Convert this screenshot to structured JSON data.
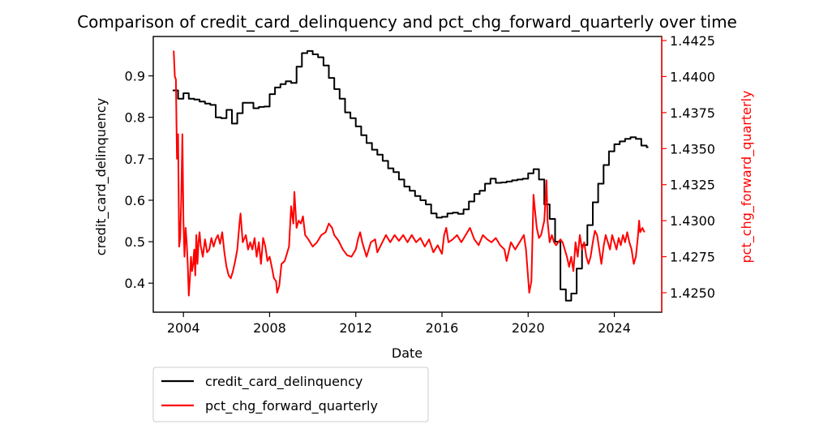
{
  "chart_data": {
    "type": "line",
    "title": "Comparison of credit_card_delinquency and pct_chg_forward_quarterly over time",
    "xlabel": "Date",
    "ylabel_left": "credit_card_delinquency",
    "ylabel_right": "pct_chg_forward_quarterly",
    "xlim": [
      2002.6,
      2026.2
    ],
    "ylim_left": [
      0.33,
      0.995
    ],
    "ylim_right": [
      1.42365,
      1.44278
    ],
    "x_ticks": [
      2004,
      2008,
      2012,
      2016,
      2020,
      2024
    ],
    "x_tick_labels": [
      "2004",
      "2008",
      "2012",
      "2016",
      "2020",
      "2024"
    ],
    "y_left_ticks": [
      0.4,
      0.5,
      0.6,
      0.7,
      0.8,
      0.9
    ],
    "y_left_tick_labels": [
      "0.4",
      "0.5",
      "0.6",
      "0.7",
      "0.8",
      "0.9"
    ],
    "y_right_ticks": [
      1.425,
      1.4275,
      1.43,
      1.4325,
      1.435,
      1.4375,
      1.44,
      1.4425
    ],
    "y_right_tick_labels": [
      "1.4250",
      "1.4275",
      "1.4300",
      "1.4325",
      "1.4350",
      "1.4375",
      "1.4400",
      "1.4425"
    ],
    "grid": false,
    "legend_position": "below-left",
    "series": [
      {
        "name": "credit_card_delinquency",
        "axis": "left",
        "color": "#000000",
        "step": true,
        "points": [
          [
            2003.5,
            0.865
          ],
          [
            2003.75,
            0.845
          ],
          [
            2004.0,
            0.858
          ],
          [
            2004.25,
            0.845
          ],
          [
            2004.5,
            0.843
          ],
          [
            2004.75,
            0.838
          ],
          [
            2005.0,
            0.833
          ],
          [
            2005.25,
            0.83
          ],
          [
            2005.5,
            0.8
          ],
          [
            2005.75,
            0.798
          ],
          [
            2006.0,
            0.818
          ],
          [
            2006.25,
            0.785
          ],
          [
            2006.5,
            0.81
          ],
          [
            2006.75,
            0.835
          ],
          [
            2007.0,
            0.835
          ],
          [
            2007.25,
            0.822
          ],
          [
            2007.5,
            0.825
          ],
          [
            2007.75,
            0.826
          ],
          [
            2008.0,
            0.856
          ],
          [
            2008.25,
            0.872
          ],
          [
            2008.5,
            0.88
          ],
          [
            2008.75,
            0.887
          ],
          [
            2009.0,
            0.883
          ],
          [
            2009.25,
            0.922
          ],
          [
            2009.5,
            0.955
          ],
          [
            2009.75,
            0.96
          ],
          [
            2010.0,
            0.952
          ],
          [
            2010.25,
            0.945
          ],
          [
            2010.5,
            0.925
          ],
          [
            2010.75,
            0.895
          ],
          [
            2011.0,
            0.868
          ],
          [
            2011.25,
            0.845
          ],
          [
            2011.5,
            0.812
          ],
          [
            2011.75,
            0.798
          ],
          [
            2012.0,
            0.778
          ],
          [
            2012.25,
            0.757
          ],
          [
            2012.5,
            0.738
          ],
          [
            2012.75,
            0.722
          ],
          [
            2013.0,
            0.71
          ],
          [
            2013.25,
            0.695
          ],
          [
            2013.5,
            0.677
          ],
          [
            2013.75,
            0.668
          ],
          [
            2014.0,
            0.65
          ],
          [
            2014.25,
            0.633
          ],
          [
            2014.5,
            0.623
          ],
          [
            2014.75,
            0.61
          ],
          [
            2015.0,
            0.6
          ],
          [
            2015.25,
            0.59
          ],
          [
            2015.5,
            0.568
          ],
          [
            2015.75,
            0.558
          ],
          [
            2016.0,
            0.56
          ],
          [
            2016.25,
            0.568
          ],
          [
            2016.5,
            0.57
          ],
          [
            2016.75,
            0.567
          ],
          [
            2017.0,
            0.578
          ],
          [
            2017.25,
            0.597
          ],
          [
            2017.5,
            0.615
          ],
          [
            2017.75,
            0.623
          ],
          [
            2018.0,
            0.64
          ],
          [
            2018.25,
            0.652
          ],
          [
            2018.5,
            0.642
          ],
          [
            2018.75,
            0.643
          ],
          [
            2019.0,
            0.645
          ],
          [
            2019.25,
            0.648
          ],
          [
            2019.5,
            0.65
          ],
          [
            2019.75,
            0.652
          ],
          [
            2020.0,
            0.665
          ],
          [
            2020.25,
            0.675
          ],
          [
            2020.5,
            0.65
          ],
          [
            2020.75,
            0.59
          ],
          [
            2021.0,
            0.555
          ],
          [
            2021.25,
            0.5
          ],
          [
            2021.5,
            0.385
          ],
          [
            2021.75,
            0.358
          ],
          [
            2022.0,
            0.375
          ],
          [
            2022.25,
            0.435
          ],
          [
            2022.5,
            0.492
          ],
          [
            2022.75,
            0.54
          ],
          [
            2023.0,
            0.595
          ],
          [
            2023.25,
            0.64
          ],
          [
            2023.5,
            0.685
          ],
          [
            2023.75,
            0.718
          ],
          [
            2024.0,
            0.735
          ],
          [
            2024.25,
            0.742
          ],
          [
            2024.5,
            0.748
          ],
          [
            2024.75,
            0.752
          ],
          [
            2025.0,
            0.748
          ],
          [
            2025.25,
            0.732
          ],
          [
            2025.5,
            0.728
          ]
        ]
      },
      {
        "name": "pct_chg_forward_quarterly",
        "axis": "right",
        "color": "#ff0000",
        "step": false,
        "points": [
          [
            2003.55,
            1.4418
          ],
          [
            2003.6,
            1.44
          ],
          [
            2003.65,
            1.4398
          ],
          [
            2003.7,
            1.4343
          ],
          [
            2003.75,
            1.436
          ],
          [
            2003.8,
            1.4282
          ],
          [
            2003.85,
            1.4288
          ],
          [
            2003.9,
            1.4315
          ],
          [
            2003.95,
            1.436
          ],
          [
            2004.0,
            1.43
          ],
          [
            2004.05,
            1.4275
          ],
          [
            2004.1,
            1.4295
          ],
          [
            2004.15,
            1.4285
          ],
          [
            2004.2,
            1.427
          ],
          [
            2004.25,
            1.4248
          ],
          [
            2004.3,
            1.426
          ],
          [
            2004.35,
            1.4275
          ],
          [
            2004.4,
            1.4265
          ],
          [
            2004.45,
            1.427
          ],
          [
            2004.5,
            1.428
          ],
          [
            2004.55,
            1.4262
          ],
          [
            2004.6,
            1.429
          ],
          [
            2004.65,
            1.427
          ],
          [
            2004.7,
            1.4285
          ],
          [
            2004.75,
            1.4292
          ],
          [
            2004.8,
            1.4283
          ],
          [
            2004.9,
            1.4275
          ],
          [
            2005.0,
            1.4287
          ],
          [
            2005.1,
            1.4278
          ],
          [
            2005.2,
            1.428
          ],
          [
            2005.3,
            1.4288
          ],
          [
            2005.4,
            1.4282
          ],
          [
            2005.5,
            1.4287
          ],
          [
            2005.6,
            1.429
          ],
          [
            2005.7,
            1.4284
          ],
          [
            2005.8,
            1.4292
          ],
          [
            2005.9,
            1.4278
          ],
          [
            2006.0,
            1.4268
          ],
          [
            2006.1,
            1.4262
          ],
          [
            2006.2,
            1.426
          ],
          [
            2006.3,
            1.4265
          ],
          [
            2006.4,
            1.4272
          ],
          [
            2006.5,
            1.428
          ],
          [
            2006.6,
            1.4298
          ],
          [
            2006.65,
            1.4305
          ],
          [
            2006.75,
            1.4285
          ],
          [
            2006.9,
            1.429
          ],
          [
            2007.0,
            1.428
          ],
          [
            2007.1,
            1.4285
          ],
          [
            2007.2,
            1.428
          ],
          [
            2007.3,
            1.4288
          ],
          [
            2007.4,
            1.4275
          ],
          [
            2007.5,
            1.4285
          ],
          [
            2007.6,
            1.427
          ],
          [
            2007.7,
            1.4288
          ],
          [
            2007.8,
            1.4282
          ],
          [
            2007.9,
            1.4272
          ],
          [
            2008.0,
            1.4275
          ],
          [
            2008.1,
            1.4268
          ],
          [
            2008.2,
            1.426
          ],
          [
            2008.3,
            1.4258
          ],
          [
            2008.35,
            1.425
          ],
          [
            2008.45,
            1.4255
          ],
          [
            2008.55,
            1.427
          ],
          [
            2008.7,
            1.4272
          ],
          [
            2008.9,
            1.4282
          ],
          [
            2009.0,
            1.431
          ],
          [
            2009.1,
            1.4298
          ],
          [
            2009.15,
            1.432
          ],
          [
            2009.25,
            1.4295
          ],
          [
            2009.35,
            1.43
          ],
          [
            2009.45,
            1.4298
          ],
          [
            2009.55,
            1.4303
          ],
          [
            2009.65,
            1.429
          ],
          [
            2009.8,
            1.4287
          ],
          [
            2010.0,
            1.4282
          ],
          [
            2010.2,
            1.4285
          ],
          [
            2010.4,
            1.429
          ],
          [
            2010.6,
            1.4292
          ],
          [
            2010.75,
            1.4298
          ],
          [
            2010.9,
            1.4295
          ],
          [
            2011.0,
            1.429
          ],
          [
            2011.2,
            1.4286
          ],
          [
            2011.4,
            1.428
          ],
          [
            2011.6,
            1.4276
          ],
          [
            2011.8,
            1.4275
          ],
          [
            2012.0,
            1.428
          ],
          [
            2012.1,
            1.4287
          ],
          [
            2012.2,
            1.4292
          ],
          [
            2012.3,
            1.4285
          ],
          [
            2012.5,
            1.4275
          ],
          [
            2012.7,
            1.4285
          ],
          [
            2012.9,
            1.4287
          ],
          [
            2013.0,
            1.4278
          ],
          [
            2013.2,
            1.4284
          ],
          [
            2013.4,
            1.429
          ],
          [
            2013.6,
            1.4285
          ],
          [
            2013.8,
            1.429
          ],
          [
            2014.0,
            1.4286
          ],
          [
            2014.2,
            1.429
          ],
          [
            2014.4,
            1.4285
          ],
          [
            2014.6,
            1.429
          ],
          [
            2014.8,
            1.4285
          ],
          [
            2015.0,
            1.4288
          ],
          [
            2015.2,
            1.4282
          ],
          [
            2015.4,
            1.4287
          ],
          [
            2015.6,
            1.4278
          ],
          [
            2015.8,
            1.4283
          ],
          [
            2016.0,
            1.4277
          ],
          [
            2016.1,
            1.429
          ],
          [
            2016.2,
            1.4295
          ],
          [
            2016.3,
            1.4285
          ],
          [
            2016.5,
            1.4287
          ],
          [
            2016.7,
            1.429
          ],
          [
            2016.9,
            1.4285
          ],
          [
            2017.1,
            1.429
          ],
          [
            2017.3,
            1.4295
          ],
          [
            2017.5,
            1.4287
          ],
          [
            2017.7,
            1.4283
          ],
          [
            2017.9,
            1.429
          ],
          [
            2018.1,
            1.4287
          ],
          [
            2018.3,
            1.4285
          ],
          [
            2018.5,
            1.4288
          ],
          [
            2018.7,
            1.4283
          ],
          [
            2018.9,
            1.428
          ],
          [
            2019.0,
            1.4272
          ],
          [
            2019.2,
            1.4285
          ],
          [
            2019.4,
            1.428
          ],
          [
            2019.6,
            1.4285
          ],
          [
            2019.8,
            1.429
          ],
          [
            2019.9,
            1.428
          ],
          [
            2020.0,
            1.426
          ],
          [
            2020.05,
            1.425
          ],
          [
            2020.15,
            1.4258
          ],
          [
            2020.25,
            1.4318
          ],
          [
            2020.3,
            1.431
          ],
          [
            2020.4,
            1.4295
          ],
          [
            2020.5,
            1.4288
          ],
          [
            2020.6,
            1.429
          ],
          [
            2020.75,
            1.43
          ],
          [
            2020.85,
            1.4328
          ],
          [
            2020.9,
            1.43
          ],
          [
            2021.0,
            1.4285
          ],
          [
            2021.1,
            1.429
          ],
          [
            2021.2,
            1.4285
          ],
          [
            2021.3,
            1.4283
          ],
          [
            2021.5,
            1.4287
          ],
          [
            2021.6,
            1.4285
          ],
          [
            2021.8,
            1.4275
          ],
          [
            2021.9,
            1.4268
          ],
          [
            2022.0,
            1.4275
          ],
          [
            2022.1,
            1.4265
          ],
          [
            2022.2,
            1.4285
          ],
          [
            2022.3,
            1.4275
          ],
          [
            2022.4,
            1.429
          ],
          [
            2022.5,
            1.428
          ],
          [
            2022.6,
            1.4285
          ],
          [
            2022.7,
            1.4275
          ],
          [
            2022.8,
            1.427
          ],
          [
            2022.9,
            1.4275
          ],
          [
            2023.0,
            1.4285
          ],
          [
            2023.1,
            1.4293
          ],
          [
            2023.2,
            1.429
          ],
          [
            2023.3,
            1.428
          ],
          [
            2023.4,
            1.427
          ],
          [
            2023.5,
            1.4282
          ],
          [
            2023.6,
            1.429
          ],
          [
            2023.7,
            1.4285
          ],
          [
            2023.8,
            1.428
          ],
          [
            2023.9,
            1.429
          ],
          [
            2024.0,
            1.4285
          ],
          [
            2024.1,
            1.428
          ],
          [
            2024.2,
            1.4288
          ],
          [
            2024.3,
            1.4283
          ],
          [
            2024.4,
            1.429
          ],
          [
            2024.5,
            1.4285
          ],
          [
            2024.6,
            1.4292
          ],
          [
            2024.7,
            1.4285
          ],
          [
            2024.8,
            1.428
          ],
          [
            2024.9,
            1.427
          ],
          [
            2025.0,
            1.4275
          ],
          [
            2025.1,
            1.429
          ],
          [
            2025.15,
            1.43
          ],
          [
            2025.2,
            1.4292
          ],
          [
            2025.3,
            1.4295
          ],
          [
            2025.4,
            1.4292
          ]
        ]
      }
    ]
  },
  "legend": {
    "items": [
      {
        "label": "credit_card_delinquency",
        "color": "#000000"
      },
      {
        "label": "pct_chg_forward_quarterly",
        "color": "#ff0000"
      }
    ]
  }
}
